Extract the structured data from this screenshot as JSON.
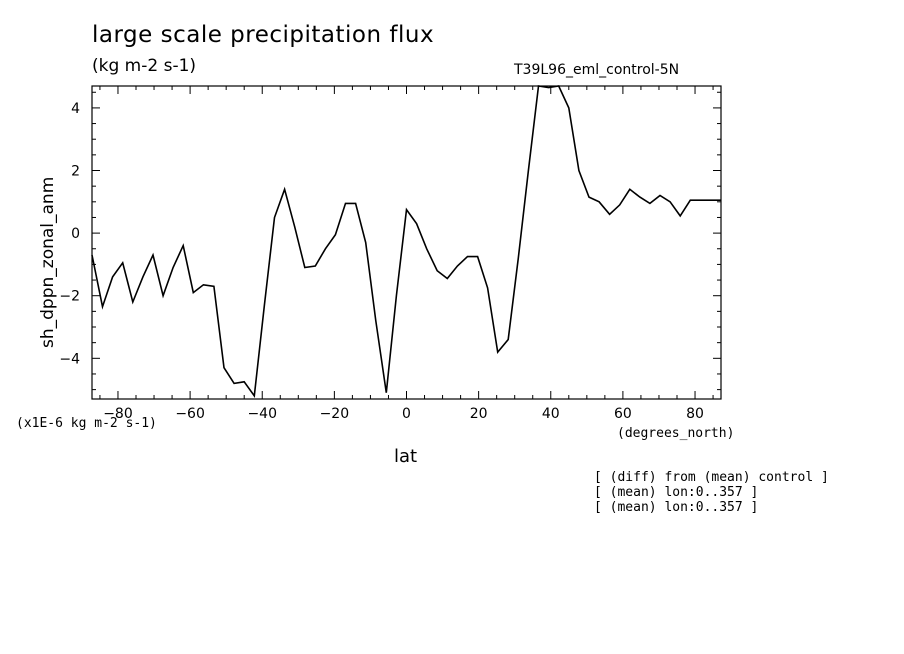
{
  "chart_data": {
    "type": "line",
    "title": "large scale precipitation flux",
    "units": "(kg m-2 s-1)",
    "run_label": "T39L96_eml_control-5N",
    "ylabel": "sh_dppn_zonal_anm",
    "xlabel": "lat",
    "x_units": "(degrees_north)",
    "y_scale_note": "(x1E-6 kg m-2 s-1)",
    "xlim": [
      -87.2,
      87.2
    ],
    "ylim": [
      -5.3,
      4.7
    ],
    "x_ticks": [
      -80,
      -60,
      -40,
      -20,
      0,
      20,
      40,
      60,
      80
    ],
    "y_ticks": [
      -4,
      -2,
      0,
      2,
      4
    ],
    "grid": false,
    "series": [
      {
        "x": [
          -87.2,
          -84.3,
          -81.5,
          -78.7,
          -75.9,
          -73.1,
          -70.3,
          -67.5,
          -64.7,
          -61.9,
          -59.1,
          -56.3,
          -53.4,
          -50.6,
          -47.8,
          -45.0,
          -42.2,
          -39.4,
          -36.6,
          -33.8,
          -31.0,
          -28.2,
          -25.3,
          -22.5,
          -19.7,
          -16.9,
          -14.1,
          -11.3,
          -8.5,
          -5.6,
          -2.8,
          0.0,
          2.8,
          5.6,
          8.5,
          11.3,
          14.1,
          16.9,
          19.7,
          22.5,
          25.3,
          28.2,
          31.0,
          33.8,
          36.6,
          39.4,
          42.2,
          45.0,
          47.8,
          50.6,
          53.4,
          56.3,
          59.1,
          61.9,
          64.7,
          67.5,
          70.3,
          73.1,
          75.9,
          78.7,
          81.5,
          84.3,
          87.2
        ],
        "y": [
          -0.7,
          -2.35,
          -1.4,
          -0.95,
          -2.2,
          -1.4,
          -0.7,
          -2.0,
          -1.1,
          -0.4,
          -1.9,
          -1.65,
          -1.7,
          -4.3,
          -4.8,
          -4.75,
          -5.2,
          -2.3,
          0.5,
          1.4,
          0.2,
          -1.1,
          -1.05,
          -0.5,
          -0.05,
          0.95,
          0.95,
          -0.3,
          -2.8,
          -5.1,
          -2.0,
          0.75,
          0.3,
          -0.5,
          -1.2,
          -1.45,
          -1.05,
          -0.75,
          -0.75,
          -1.75,
          -3.8,
          -3.4,
          -0.8,
          2.0,
          4.7,
          4.65,
          4.7,
          4.0,
          2.0,
          1.15,
          1.0,
          0.6,
          0.9,
          1.4,
          1.15,
          0.95,
          1.2,
          1.0,
          0.55,
          1.05,
          1.05,
          1.05,
          1.05
        ]
      }
    ],
    "notes": [
      "[ (diff) from (mean) control ]",
      "[ (mean) lon:0..357 ]",
      "[ (mean) lon:0..357 ]"
    ]
  }
}
